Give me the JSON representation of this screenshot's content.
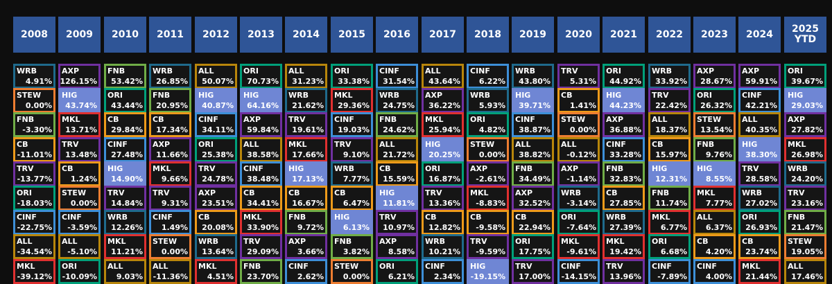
{
  "years": [
    "2008",
    "2009",
    "2010",
    "2011",
    "2012",
    "2013",
    "2014",
    "2015",
    "2016",
    "2017",
    "2018",
    "2019",
    "2020",
    "2021",
    "2022",
    "2023",
    "2024",
    "2025\nYTD"
  ],
  "ticker_colors": {
    "WRB": "#1f6a8c",
    "AXP": "#7030a0",
    "FNB": "#70ad47",
    "ALL": "#b8860b",
    "ORI": "#00a07a",
    "CINF": "#3d8fd8",
    "TRV": "#7030a0",
    "STEW": "#ed7d31",
    "HIG": "#6f86d4",
    "CB": "#ed9a1a",
    "MKL": "#e03030"
  },
  "columns": [
    [
      {
        "t": "WRB",
        "r": "4.91%"
      },
      {
        "t": "STEW",
        "r": "0.00%"
      },
      {
        "t": "FNB",
        "r": "-3.30%"
      },
      {
        "t": "CB",
        "r": "-11.01%"
      },
      {
        "t": "TRV",
        "r": "-13.77%"
      },
      {
        "t": "ORI",
        "r": "-18.03%"
      },
      {
        "t": "CINF",
        "r": "-22.75%"
      },
      {
        "t": "ALL",
        "r": "-34.54%"
      },
      {
        "t": "MKL",
        "r": "-39.12%"
      }
    ],
    [
      {
        "t": "AXP",
        "r": "126.15%"
      },
      {
        "t": "HIG",
        "r": "43.74%"
      },
      {
        "t": "MKL",
        "r": "13.71%"
      },
      {
        "t": "TRV",
        "r": "13.48%"
      },
      {
        "t": "CB",
        "r": "1.24%"
      },
      {
        "t": "STEW",
        "r": "0.00%"
      },
      {
        "t": "CINF",
        "r": "-3.59%"
      },
      {
        "t": "ALL",
        "r": "-5.10%"
      },
      {
        "t": "ORI",
        "r": "-10.09%"
      }
    ],
    [
      {
        "t": "FNB",
        "r": "53.42%"
      },
      {
        "t": "ORI",
        "r": "43.44%"
      },
      {
        "t": "CB",
        "r": "29.84%"
      },
      {
        "t": "CINF",
        "r": "27.48%"
      },
      {
        "t": "HIG",
        "r": "14.90%"
      },
      {
        "t": "TRV",
        "r": "14.84%"
      },
      {
        "t": "WRB",
        "r": "12.26%"
      },
      {
        "t": "MKL",
        "r": "11.21%"
      },
      {
        "t": "ALL",
        "r": "9.03%"
      }
    ],
    [
      {
        "t": "WRB",
        "r": "26.85%"
      },
      {
        "t": "FNB",
        "r": "20.95%"
      },
      {
        "t": "CB",
        "r": "17.34%"
      },
      {
        "t": "AXP",
        "r": "11.66%"
      },
      {
        "t": "MKL",
        "r": "9.66%"
      },
      {
        "t": "TRV",
        "r": "9.31%"
      },
      {
        "t": "CINF",
        "r": "1.49%"
      },
      {
        "t": "STEW",
        "r": "0.00%"
      },
      {
        "t": "ALL",
        "r": "-11.36%"
      }
    ],
    [
      {
        "t": "ALL",
        "r": "50.07%"
      },
      {
        "t": "HIG",
        "r": "40.87%"
      },
      {
        "t": "CINF",
        "r": "34.11%"
      },
      {
        "t": "ORI",
        "r": "25.38%"
      },
      {
        "t": "TRV",
        "r": "24.78%"
      },
      {
        "t": "AXP",
        "r": "23.51%"
      },
      {
        "t": "CB",
        "r": "20.08%"
      },
      {
        "t": "WRB",
        "r": "13.64%"
      },
      {
        "t": "MKL",
        "r": "4.51%"
      }
    ],
    [
      {
        "t": "ORI",
        "r": "70.73%"
      },
      {
        "t": "HIG",
        "r": "64.16%"
      },
      {
        "t": "AXP",
        "r": "59.84%"
      },
      {
        "t": "ALL",
        "r": "38.58%"
      },
      {
        "t": "CINF",
        "r": "38.48%"
      },
      {
        "t": "CB",
        "r": "34.41%"
      },
      {
        "t": "MKL",
        "r": "33.90%"
      },
      {
        "t": "TRV",
        "r": "29.09%"
      },
      {
        "t": "FNB",
        "r": "23.70%"
      }
    ],
    [
      {
        "t": "ALL",
        "r": "31.23%"
      },
      {
        "t": "WRB",
        "r": "21.62%"
      },
      {
        "t": "TRV",
        "r": "19.61%"
      },
      {
        "t": "MKL",
        "r": "17.66%"
      },
      {
        "t": "HIG",
        "r": "17.13%"
      },
      {
        "t": "CB",
        "r": "16.67%"
      },
      {
        "t": "FNB",
        "r": "9.72%"
      },
      {
        "t": "AXP",
        "r": "3.66%"
      },
      {
        "t": "CINF",
        "r": "2.62%"
      }
    ],
    [
      {
        "t": "ORI",
        "r": "33.38%"
      },
      {
        "t": "MKL",
        "r": "29.36%"
      },
      {
        "t": "CINF",
        "r": "19.03%"
      },
      {
        "t": "TRV",
        "r": "9.10%"
      },
      {
        "t": "WRB",
        "r": "7.77%"
      },
      {
        "t": "CB",
        "r": "6.47%"
      },
      {
        "t": "HIG",
        "r": "6.13%"
      },
      {
        "t": "FNB",
        "r": "3.82%"
      },
      {
        "t": "STEW",
        "r": "0.00%"
      }
    ],
    [
      {
        "t": "CINF",
        "r": "31.54%"
      },
      {
        "t": "WRB",
        "r": "24.75%"
      },
      {
        "t": "FNB",
        "r": "24.62%"
      },
      {
        "t": "ALL",
        "r": "21.72%"
      },
      {
        "t": "CB",
        "r": "15.59%"
      },
      {
        "t": "HIG",
        "r": "11.81%"
      },
      {
        "t": "TRV",
        "r": "10.97%"
      },
      {
        "t": "AXP",
        "r": "8.58%"
      },
      {
        "t": "ORI",
        "r": "6.21%"
      }
    ],
    [
      {
        "t": "ALL",
        "r": "43.64%"
      },
      {
        "t": "AXP",
        "r": "36.22%"
      },
      {
        "t": "MKL",
        "r": "25.94%"
      },
      {
        "t": "HIG",
        "r": "20.25%"
      },
      {
        "t": "ORI",
        "r": "16.87%"
      },
      {
        "t": "TRV",
        "r": "13.36%"
      },
      {
        "t": "CB",
        "r": "12.82%"
      },
      {
        "t": "WRB",
        "r": "10.21%"
      },
      {
        "t": "CINF",
        "r": "2.34%"
      }
    ],
    [
      {
        "t": "CINF",
        "r": "6.22%"
      },
      {
        "t": "WRB",
        "r": "5.93%"
      },
      {
        "t": "ORI",
        "r": "4.82%"
      },
      {
        "t": "STEW",
        "r": "0.00%"
      },
      {
        "t": "AXP",
        "r": "-2.61%"
      },
      {
        "t": "MKL",
        "r": "-8.83%"
      },
      {
        "t": "CB",
        "r": "-9.58%"
      },
      {
        "t": "TRV",
        "r": "-9.59%"
      },
      {
        "t": "HIG",
        "r": "-19.15%"
      }
    ],
    [
      {
        "t": "WRB",
        "r": "43.80%"
      },
      {
        "t": "HIG",
        "r": "39.71%"
      },
      {
        "t": "CINF",
        "r": "38.87%"
      },
      {
        "t": "ALL",
        "r": "38.82%"
      },
      {
        "t": "FNB",
        "r": "34.49%"
      },
      {
        "t": "AXP",
        "r": "32.52%"
      },
      {
        "t": "CB",
        "r": "22.94%"
      },
      {
        "t": "ORI",
        "r": "17.75%"
      },
      {
        "t": "TRV",
        "r": "17.00%"
      }
    ],
    [
      {
        "t": "TRV",
        "r": "5.31%"
      },
      {
        "t": "CB",
        "r": "1.41%"
      },
      {
        "t": "STEW",
        "r": "0.00%"
      },
      {
        "t": "ALL",
        "r": "-0.12%"
      },
      {
        "t": "AXP",
        "r": "-1.14%"
      },
      {
        "t": "WRB",
        "r": "-3.14%"
      },
      {
        "t": "ORI",
        "r": "-7.64%"
      },
      {
        "t": "MKL",
        "r": "-9.61%"
      },
      {
        "t": "CINF",
        "r": "-14.15%"
      }
    ],
    [
      {
        "t": "ORI",
        "r": "44.92%"
      },
      {
        "t": "HIG",
        "r": "44.23%"
      },
      {
        "t": "AXP",
        "r": "36.88%"
      },
      {
        "t": "CINF",
        "r": "33.28%"
      },
      {
        "t": "FNB",
        "r": "32.83%"
      },
      {
        "t": "CB",
        "r": "27.85%"
      },
      {
        "t": "WRB",
        "r": "27.39%"
      },
      {
        "t": "MKL",
        "r": "19.42%"
      },
      {
        "t": "TRV",
        "r": "13.96%"
      }
    ],
    [
      {
        "t": "WRB",
        "r": "33.92%"
      },
      {
        "t": "TRV",
        "r": "22.42%"
      },
      {
        "t": "ALL",
        "r": "18.37%"
      },
      {
        "t": "CB",
        "r": "15.97%"
      },
      {
        "t": "HIG",
        "r": "12.31%"
      },
      {
        "t": "FNB",
        "r": "11.74%"
      },
      {
        "t": "MKL",
        "r": "6.77%"
      },
      {
        "t": "ORI",
        "r": "6.68%"
      },
      {
        "t": "CINF",
        "r": "-7.89%"
      }
    ],
    [
      {
        "t": "AXP",
        "r": "28.67%"
      },
      {
        "t": "ORI",
        "r": "26.32%"
      },
      {
        "t": "STEW",
        "r": "13.54%"
      },
      {
        "t": "FNB",
        "r": "9.76%"
      },
      {
        "t": "HIG",
        "r": "8.55%"
      },
      {
        "t": "MKL",
        "r": "7.77%"
      },
      {
        "t": "ALL",
        "r": "6.37%"
      },
      {
        "t": "CB",
        "r": "4.20%"
      },
      {
        "t": "CINF",
        "r": "4.00%"
      }
    ],
    [
      {
        "t": "AXP",
        "r": "59.91%"
      },
      {
        "t": "CINF",
        "r": "42.21%"
      },
      {
        "t": "ALL",
        "r": "40.35%"
      },
      {
        "t": "HIG",
        "r": "38.30%"
      },
      {
        "t": "TRV",
        "r": "28.58%"
      },
      {
        "t": "WRB",
        "r": "27.02%"
      },
      {
        "t": "ORI",
        "r": "26.93%"
      },
      {
        "t": "CB",
        "r": "23.74%"
      },
      {
        "t": "MKL",
        "r": "21.44%"
      }
    ],
    [
      {
        "t": "ORI",
        "r": "39.67%"
      },
      {
        "t": "HIG",
        "r": "29.03%"
      },
      {
        "t": "AXP",
        "r": "27.82%"
      },
      {
        "t": "MKL",
        "r": "26.98%"
      },
      {
        "t": "WRB",
        "r": "24.20%"
      },
      {
        "t": "TRV",
        "r": "23.16%"
      },
      {
        "t": "FNB",
        "r": "21.47%"
      },
      {
        "t": "STEW",
        "r": "19.05%"
      },
      {
        "t": "ALL",
        "r": "17.46%"
      }
    ]
  ]
}
